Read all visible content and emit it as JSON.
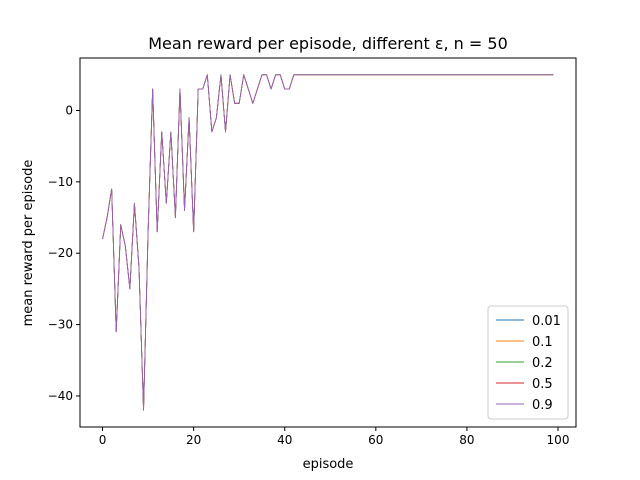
{
  "chart_data": {
    "type": "line",
    "title": "Mean reward per episode, different ε, n = 50",
    "xlabel": "episode",
    "ylabel": "mean reward per episode",
    "xlim": [
      -4.95,
      103.95
    ],
    "ylim": [
      -44.35,
      7.35
    ],
    "xticks": [
      0,
      20,
      40,
      60,
      80,
      100
    ],
    "xtick_labels": [
      "0",
      "20",
      "40",
      "60",
      "80",
      "100"
    ],
    "yticks": [
      -40,
      -30,
      -20,
      -10,
      0
    ],
    "ytick_labels": [
      "−40",
      "−30",
      "−20",
      "−10",
      "0"
    ],
    "grid": false,
    "legend_position": "lower right",
    "series": [
      {
        "name": "0.01",
        "color": "#1f77b4"
      },
      {
        "name": "0.1",
        "color": "#ff7f0e"
      },
      {
        "name": "0.2",
        "color": "#2ca02c"
      },
      {
        "name": "0.5",
        "color": "#d62728"
      },
      {
        "name": "0.9",
        "color": "#9467bd"
      }
    ],
    "x": [
      0,
      1,
      2,
      3,
      4,
      5,
      6,
      7,
      8,
      9,
      10,
      11,
      12,
      13,
      14,
      15,
      16,
      17,
      18,
      19,
      20,
      21,
      22,
      23,
      24,
      25,
      26,
      27,
      28,
      29,
      30,
      31,
      32,
      33,
      34,
      35,
      36,
      37,
      38,
      39,
      40,
      41,
      42,
      43,
      44,
      45,
      46,
      47,
      48,
      49,
      50,
      51,
      52,
      53,
      54,
      55,
      56,
      57,
      58,
      59,
      60,
      61,
      62,
      63,
      64,
      65,
      66,
      67,
      68,
      69,
      70,
      71,
      72,
      73,
      74,
      75,
      76,
      77,
      78,
      79,
      80,
      81,
      82,
      83,
      84,
      85,
      86,
      87,
      88,
      89,
      90,
      91,
      92,
      93,
      94,
      95,
      96,
      97,
      98,
      99
    ],
    "y": [
      -18,
      -15,
      -11,
      -31,
      -16,
      -19,
      -25,
      -13,
      -22,
      -42,
      -17,
      3,
      -17,
      -3,
      -13,
      -3,
      -15,
      3,
      -14,
      -1,
      -17,
      3,
      3,
      5,
      -3,
      -1,
      5,
      -3,
      5,
      1,
      1,
      5,
      3,
      1,
      3,
      5,
      5,
      3,
      5,
      5,
      3,
      3,
      5,
      5,
      5,
      5,
      5,
      5,
      5,
      5,
      5,
      5,
      5,
      5,
      5,
      5,
      5,
      5,
      5,
      5,
      5,
      5,
      5,
      5,
      5,
      5,
      5,
      5,
      5,
      5,
      5,
      5,
      5,
      5,
      5,
      5,
      5,
      5,
      5,
      5,
      5,
      5,
      5,
      5,
      5,
      5,
      5,
      5,
      5,
      5,
      5,
      5,
      5,
      5,
      5,
      5,
      5,
      5,
      5,
      5
    ],
    "note": ""
  }
}
